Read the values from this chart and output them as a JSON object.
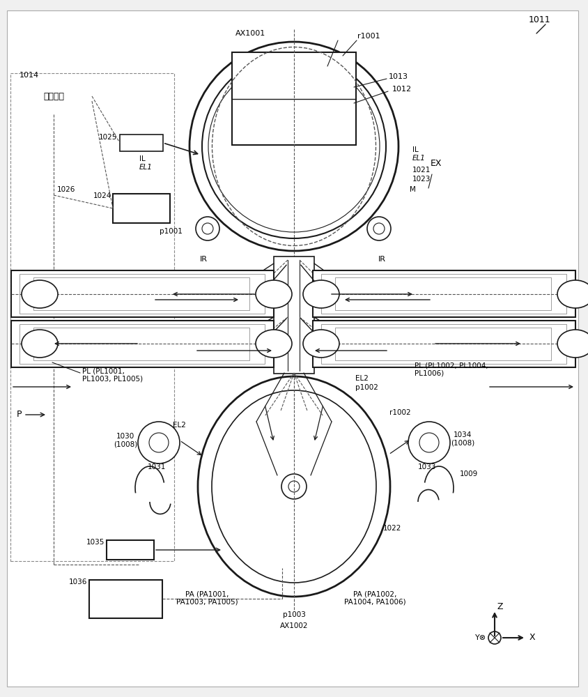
{
  "bg_color": "#f0f0f0",
  "line_color": "#1a1a1a",
  "dashed_color": "#555555",
  "fig_width": 8.44,
  "fig_height": 10.0,
  "labels": {
    "ref_num": "1011",
    "control_box": "控制装置",
    "ctrl_ref": "1014",
    "AX1001": "AX1001",
    "r1001": "r1001",
    "1013": "1013",
    "1012": "1012",
    "IL_left": "IL",
    "EL1_left": "EL1",
    "IL_right": "IL",
    "EL1_right": "EL1",
    "1021": "1021",
    "1023": "1023",
    "M": "M",
    "p1001": "p1001",
    "IR_left": "IR",
    "IR_right": "IR",
    "1025": "1025",
    "1026": "1026",
    "1024": "1024",
    "EX": "EX",
    "PL_left": "PL (PL1001,\nPL1003, PL1005)",
    "PL_right": "PL (PL1002, PL1004,\nPL1006)",
    "EL2_left": "EL2",
    "EL2_right": "EL2",
    "p1002": "p1002",
    "r1002": "r1002",
    "P": "P",
    "1030": "1030\n(1008)",
    "1031": "1031",
    "1034": "1034\n(1008)",
    "1009": "1009",
    "1033": "1033",
    "1022": "1022",
    "1035": "1035",
    "1036": "1036",
    "PA_left": "PA (PA1001,\nPA1003, PA1005)",
    "PA_right": "PA (PA1002,\nPA1004, PA1006)",
    "p1003": "p1003",
    "AX1002": "AX1002",
    "Z": "Z",
    "X": "X"
  }
}
